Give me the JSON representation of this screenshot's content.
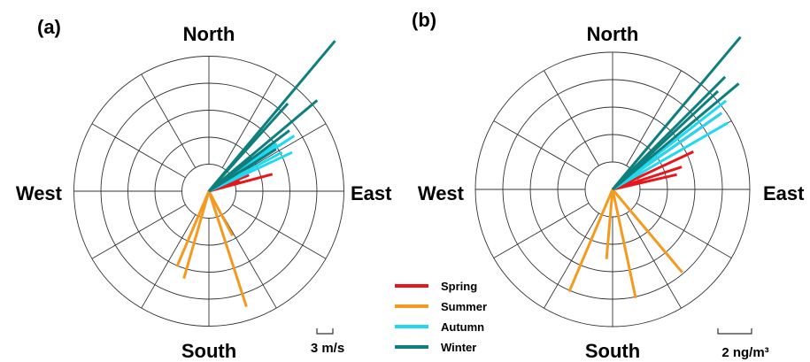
{
  "legend": [
    {
      "name": "Spring",
      "color": "#e8161b"
    },
    {
      "name": "Summer",
      "color": "#f39a1f"
    },
    {
      "name": "Autumn",
      "color": "#1fd9f2"
    },
    {
      "name": "Winter",
      "color": "#0f7f7d"
    }
  ],
  "chart_data": [
    {
      "type": "polar",
      "panel_label": "(a)",
      "direction_labels": {
        "north": "North",
        "south": "South",
        "east": "East",
        "west": "West"
      },
      "scale_bar": {
        "label": "3 m/s",
        "value": 3
      },
      "rings": 5,
      "ring_step": 3,
      "spokes_deg": [
        0,
        30,
        60,
        90,
        120,
        150,
        180,
        210,
        240,
        270,
        300,
        330
      ],
      "series": [
        {
          "name": "Spring",
          "bearing_deg": [
            52,
            60,
            68,
            72,
            75
          ],
          "values": [
            6.0,
            4.2,
            4.8,
            3.6,
            7.3
          ]
        },
        {
          "name": "Summer",
          "bearing_deg": [
            162,
            196,
            203,
            152
          ],
          "values": [
            13.5,
            10.1,
            9.1,
            5.6
          ]
        },
        {
          "name": "Autumn",
          "bearing_deg": [
            55,
            57,
            62,
            65
          ],
          "values": [
            9.2,
            11.3,
            9.2,
            10.2
          ]
        },
        {
          "name": "Winter",
          "bearing_deg": [
            40,
            42,
            50,
            53,
            58
          ],
          "values": [
            21.8,
            13.1,
            15.7,
            11.2,
            8.8
          ]
        }
      ]
    },
    {
      "type": "polar",
      "panel_label": "(b)",
      "direction_labels": {
        "north": "North",
        "south": "South",
        "east": "East",
        "west": "West"
      },
      "scale_bar": {
        "label": "2 ng/m³",
        "value": 2
      },
      "rings": 5,
      "ring_step": 2,
      "spokes_deg": [
        0,
        30,
        60,
        90,
        120,
        150,
        180,
        210,
        240,
        270,
        300,
        330
      ],
      "series": [
        {
          "name": "Spring",
          "bearing_deg": [
            55,
            65,
            72,
            77
          ],
          "values": [
            9.7,
            6.5,
            5.3,
            4.8
          ]
        },
        {
          "name": "Summer",
          "bearing_deg": [
            168,
            203,
            140,
            185
          ],
          "values": [
            8.1,
            8.1,
            7.9,
            5.1
          ]
        },
        {
          "name": "Autumn",
          "bearing_deg": [
            52,
            55,
            60
          ],
          "values": [
            10.5,
            9.7,
            9.7
          ]
        },
        {
          "name": "Winter",
          "bearing_deg": [
            40,
            45,
            50,
            47
          ],
          "values": [
            14.5,
            11.6,
            12.0,
            10.5
          ]
        }
      ]
    }
  ]
}
